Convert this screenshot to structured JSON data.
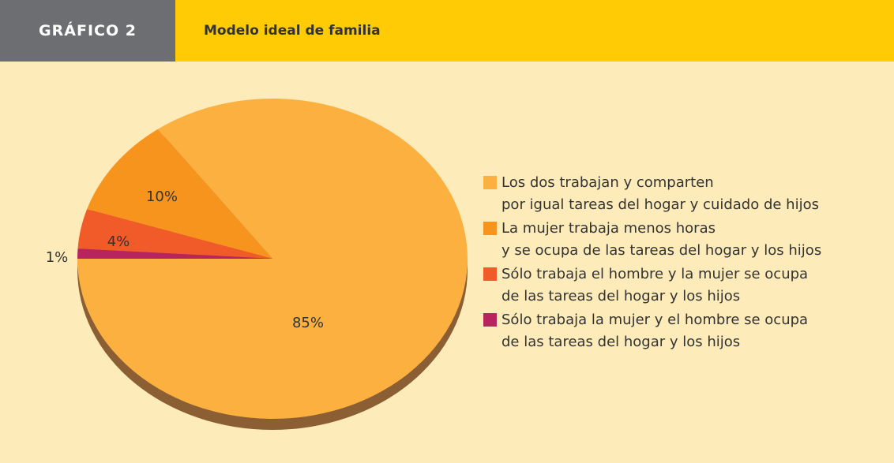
{
  "header": {
    "label": "GRÁFICO 2",
    "title": "Modelo ideal de familia"
  },
  "chart_data": {
    "type": "pie",
    "categories": [
      "Los dos trabajan y comparten\npor igual tareas del hogar y cuidado de hijos",
      "La mujer trabaja menos horas\ny se ocupa de las tareas del hogar y los hijos",
      "Sólo trabaja el hombre y la mujer se ocupa\nde las tareas del hogar y los hijos",
      "Sólo trabaja la mujer y el hombre se ocupa\nde las tareas del hogar y los hijos"
    ],
    "values": [
      85,
      10,
      4,
      1
    ],
    "value_labels": [
      "85%",
      "10%",
      "4%",
      "1%"
    ],
    "colors": [
      "#fbb040",
      "#f7941d",
      "#f15a29",
      "#b8245e"
    ],
    "legend": "right"
  }
}
